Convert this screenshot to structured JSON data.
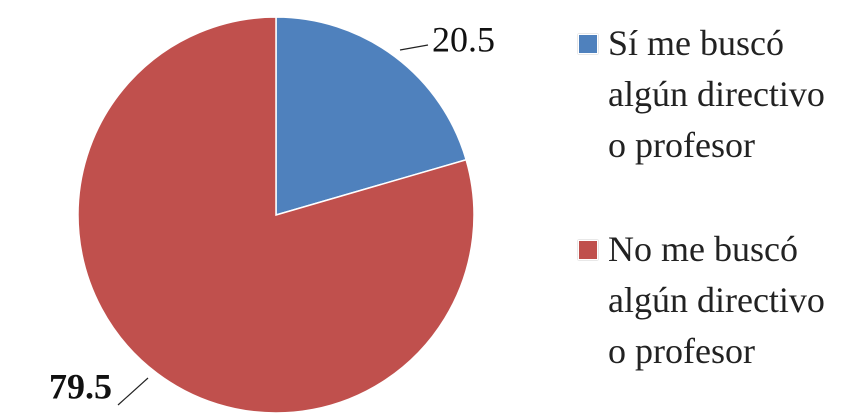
{
  "chart_data": {
    "type": "pie",
    "categories": [
      "Sí me buscó algún directivo o profesor",
      "No me buscó algún directivo o profesor"
    ],
    "values": [
      20.5,
      79.5
    ],
    "colors": [
      "#4f81bd",
      "#c0504d"
    ]
  }
}
